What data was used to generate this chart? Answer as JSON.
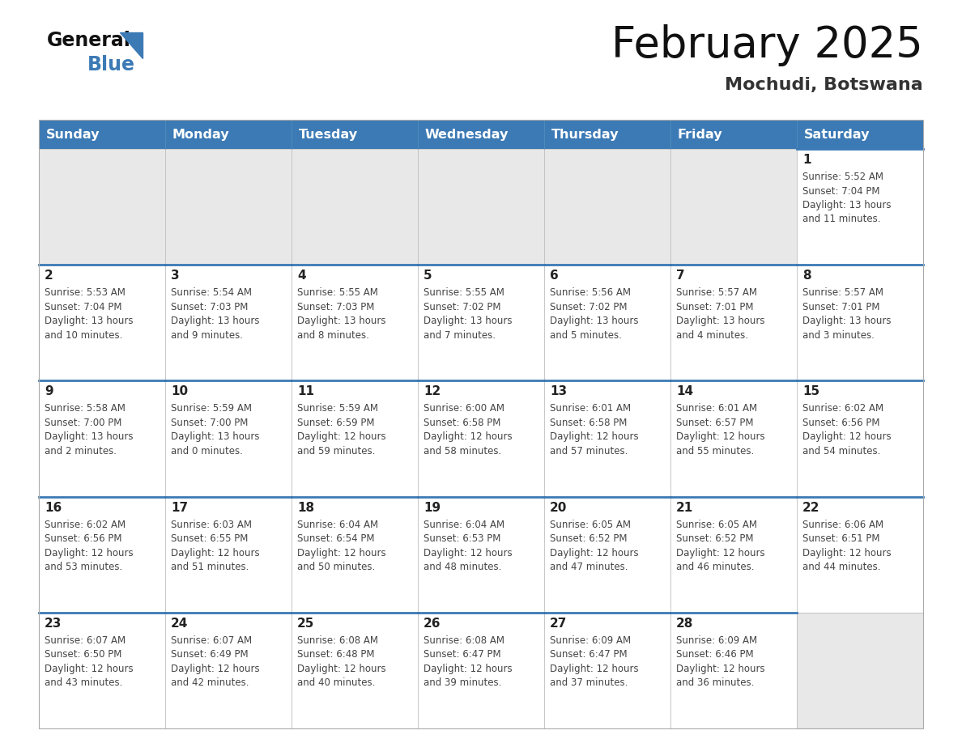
{
  "title": "February 2025",
  "subtitle": "Mochudi, Botswana",
  "days_of_week": [
    "Sunday",
    "Monday",
    "Tuesday",
    "Wednesday",
    "Thursday",
    "Friday",
    "Saturday"
  ],
  "header_bg_color": "#3c7ab5",
  "header_text_color": "#ffffff",
  "cell_bg_color": "#ffffff",
  "empty_cell_bg_color": "#e8e8e8",
  "border_color": "#3c7ab5",
  "cell_border_color": "#bbbbbb",
  "day_number_color": "#222222",
  "info_text_color": "#444444",
  "title_color": "#111111",
  "subtitle_color": "#333333",
  "logo_color_general": "#111111",
  "logo_color_blue": "#3c7ab5",
  "calendar_data": [
    [
      null,
      null,
      null,
      null,
      null,
      null,
      {
        "day": 1,
        "sunrise": "5:52 AM",
        "sunset": "7:04 PM",
        "daylight_h": "13 hours",
        "daylight_m": "and 11 minutes."
      }
    ],
    [
      {
        "day": 2,
        "sunrise": "5:53 AM",
        "sunset": "7:04 PM",
        "daylight_h": "13 hours",
        "daylight_m": "and 10 minutes."
      },
      {
        "day": 3,
        "sunrise": "5:54 AM",
        "sunset": "7:03 PM",
        "daylight_h": "13 hours",
        "daylight_m": "and 9 minutes."
      },
      {
        "day": 4,
        "sunrise": "5:55 AM",
        "sunset": "7:03 PM",
        "daylight_h": "13 hours",
        "daylight_m": "and 8 minutes."
      },
      {
        "day": 5,
        "sunrise": "5:55 AM",
        "sunset": "7:02 PM",
        "daylight_h": "13 hours",
        "daylight_m": "and 7 minutes."
      },
      {
        "day": 6,
        "sunrise": "5:56 AM",
        "sunset": "7:02 PM",
        "daylight_h": "13 hours",
        "daylight_m": "and 5 minutes."
      },
      {
        "day": 7,
        "sunrise": "5:57 AM",
        "sunset": "7:01 PM",
        "daylight_h": "13 hours",
        "daylight_m": "and 4 minutes."
      },
      {
        "day": 8,
        "sunrise": "5:57 AM",
        "sunset": "7:01 PM",
        "daylight_h": "13 hours",
        "daylight_m": "and 3 minutes."
      }
    ],
    [
      {
        "day": 9,
        "sunrise": "5:58 AM",
        "sunset": "7:00 PM",
        "daylight_h": "13 hours",
        "daylight_m": "and 2 minutes."
      },
      {
        "day": 10,
        "sunrise": "5:59 AM",
        "sunset": "7:00 PM",
        "daylight_h": "13 hours",
        "daylight_m": "and 0 minutes."
      },
      {
        "day": 11,
        "sunrise": "5:59 AM",
        "sunset": "6:59 PM",
        "daylight_h": "12 hours",
        "daylight_m": "and 59 minutes."
      },
      {
        "day": 12,
        "sunrise": "6:00 AM",
        "sunset": "6:58 PM",
        "daylight_h": "12 hours",
        "daylight_m": "and 58 minutes."
      },
      {
        "day": 13,
        "sunrise": "6:01 AM",
        "sunset": "6:58 PM",
        "daylight_h": "12 hours",
        "daylight_m": "and 57 minutes."
      },
      {
        "day": 14,
        "sunrise": "6:01 AM",
        "sunset": "6:57 PM",
        "daylight_h": "12 hours",
        "daylight_m": "and 55 minutes."
      },
      {
        "day": 15,
        "sunrise": "6:02 AM",
        "sunset": "6:56 PM",
        "daylight_h": "12 hours",
        "daylight_m": "and 54 minutes."
      }
    ],
    [
      {
        "day": 16,
        "sunrise": "6:02 AM",
        "sunset": "6:56 PM",
        "daylight_h": "12 hours",
        "daylight_m": "and 53 minutes."
      },
      {
        "day": 17,
        "sunrise": "6:03 AM",
        "sunset": "6:55 PM",
        "daylight_h": "12 hours",
        "daylight_m": "and 51 minutes."
      },
      {
        "day": 18,
        "sunrise": "6:04 AM",
        "sunset": "6:54 PM",
        "daylight_h": "12 hours",
        "daylight_m": "and 50 minutes."
      },
      {
        "day": 19,
        "sunrise": "6:04 AM",
        "sunset": "6:53 PM",
        "daylight_h": "12 hours",
        "daylight_m": "and 48 minutes."
      },
      {
        "day": 20,
        "sunrise": "6:05 AM",
        "sunset": "6:52 PM",
        "daylight_h": "12 hours",
        "daylight_m": "and 47 minutes."
      },
      {
        "day": 21,
        "sunrise": "6:05 AM",
        "sunset": "6:52 PM",
        "daylight_h": "12 hours",
        "daylight_m": "and 46 minutes."
      },
      {
        "day": 22,
        "sunrise": "6:06 AM",
        "sunset": "6:51 PM",
        "daylight_h": "12 hours",
        "daylight_m": "and 44 minutes."
      }
    ],
    [
      {
        "day": 23,
        "sunrise": "6:07 AM",
        "sunset": "6:50 PM",
        "daylight_h": "12 hours",
        "daylight_m": "and 43 minutes."
      },
      {
        "day": 24,
        "sunrise": "6:07 AM",
        "sunset": "6:49 PM",
        "daylight_h": "12 hours",
        "daylight_m": "and 42 minutes."
      },
      {
        "day": 25,
        "sunrise": "6:08 AM",
        "sunset": "6:48 PM",
        "daylight_h": "12 hours",
        "daylight_m": "and 40 minutes."
      },
      {
        "day": 26,
        "sunrise": "6:08 AM",
        "sunset": "6:47 PM",
        "daylight_h": "12 hours",
        "daylight_m": "and 39 minutes."
      },
      {
        "day": 27,
        "sunrise": "6:09 AM",
        "sunset": "6:47 PM",
        "daylight_h": "12 hours",
        "daylight_m": "and 37 minutes."
      },
      {
        "day": 28,
        "sunrise": "6:09 AM",
        "sunset": "6:46 PM",
        "daylight_h": "12 hours",
        "daylight_m": "and 36 minutes."
      },
      null
    ]
  ]
}
